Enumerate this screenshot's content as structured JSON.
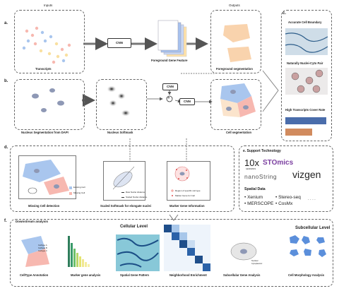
{
  "sections": {
    "a": "a.",
    "b": "b.",
    "c": "c.",
    "d": "d.",
    "e": "e. Support Technology",
    "f": "f."
  },
  "headers": {
    "inputs": "Inputs",
    "outputs": "Outputs"
  },
  "panel_a": {
    "transcripts": "Transcripts",
    "cnn": "CNN",
    "foreground_feature": "Foreground Gene Feature",
    "foreground_seg": "Foreground segmentation"
  },
  "panel_b": {
    "nucleus_seg": "Nucleus Segmentation from DAPI",
    "softmask": "Nucleus Softmask",
    "cnn1": "CNN",
    "cnn2": "CNN",
    "plus": "+",
    "cell_seg": "Cell segmentation"
  },
  "panel_c": {
    "boundary": "Accurate Cell Boundary",
    "pair": "Naturally Nuclei-Cyto Pair",
    "cover": "High Transcripts Cover Rate"
  },
  "panel_d": {
    "missing": "Missing Cell detection",
    "existing": "Existing Cell",
    "missing_cell": "Missing Cell",
    "scaled": "Scaled Softmask for elongate nuclei",
    "raw": "Raw Nuclei distance",
    "scaled_dist": "Scaled Nuclei distance",
    "marker": "Marker Gene Information",
    "region": "Region of specific cell type",
    "marker_gene": "Marker Gene for Cell"
  },
  "panel_e": {
    "tenx": "10x",
    "tenx_sub": "GENOMICS",
    "stomics": "STOmics",
    "nanostring": "nanoString",
    "vizgen": "vizgen",
    "spatial": "Spatial Data",
    "items": [
      "Xenium",
      "Stereo-seq",
      "MERSCOPE",
      "CosMx"
    ],
    "more": "· · · ·"
  },
  "panel_f": {
    "title": "Downstream analysis",
    "cellular": "Cellular Level",
    "subcellular": "Subcellular Level",
    "celltype": "CellType Annotation",
    "ct_legend": [
      "Celltype A",
      "Celltype B",
      "Celltype C"
    ],
    "marker_analysis": "Marker gene analysis",
    "spatial_pattern": "Spatial Gene Pattern",
    "neighborhood": "Neighborhood Enrichment",
    "subcell_gene": "Subcellular Gene Analysis",
    "nuclear": "Nuclear",
    "cyto": "Cytoplasmic",
    "morph": "Cell Morphology Analysis"
  },
  "colors": {
    "blue": "#8fb3e0",
    "peach": "#f6c7a0",
    "red": "#f4a7a0",
    "nucleus": "#8e98b5"
  }
}
